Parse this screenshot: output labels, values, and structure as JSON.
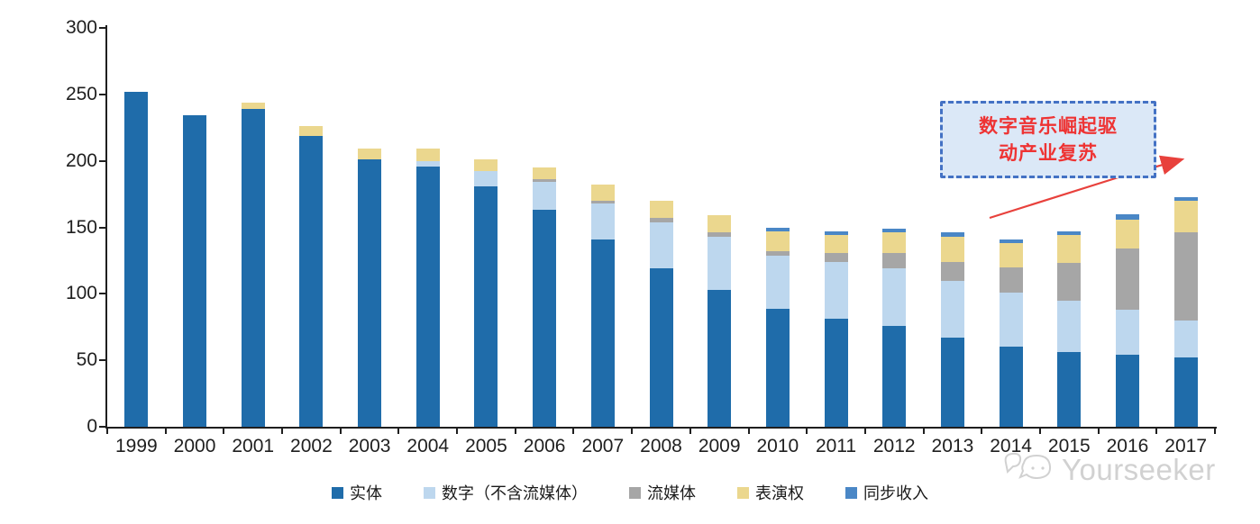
{
  "chart_data": {
    "type": "bar",
    "stacked": true,
    "title": "",
    "xlabel": "",
    "ylabel": "",
    "categories": [
      "1999",
      "2000",
      "2001",
      "2002",
      "2003",
      "2004",
      "2005",
      "2006",
      "2007",
      "2008",
      "2009",
      "2010",
      "2011",
      "2012",
      "2013",
      "2014",
      "2015",
      "2016",
      "2017"
    ],
    "series": [
      {
        "name": "实体",
        "color": "#1f6caa",
        "values": [
          252,
          234,
          239,
          219,
          201,
          196,
          181,
          163,
          141,
          119,
          103,
          89,
          81,
          76,
          67,
          60,
          56,
          54,
          52
        ]
      },
      {
        "name": "数字（不含流媒体）",
        "color": "#bdd7ee",
        "values": [
          0,
          0,
          0,
          0,
          0,
          4,
          11,
          21,
          27,
          35,
          40,
          40,
          43,
          43,
          43,
          41,
          39,
          34,
          28
        ]
      },
      {
        "name": "流媒体",
        "color": "#a6a6a6",
        "values": [
          0,
          0,
          0,
          0,
          0,
          0,
          0,
          2,
          2,
          3,
          3,
          3,
          7,
          12,
          14,
          19,
          28,
          46,
          66
        ]
      },
      {
        "name": "表演权",
        "color": "#ebd78e",
        "values": [
          0,
          0,
          5,
          7,
          8,
          9,
          9,
          9,
          12,
          13,
          13,
          15,
          13,
          15,
          19,
          18,
          21,
          22,
          24
        ]
      },
      {
        "name": "同步收入",
        "color": "#4a87c6",
        "values": [
          0,
          0,
          0,
          0,
          0,
          0,
          0,
          0,
          0,
          0,
          0,
          3,
          3,
          3,
          3,
          3,
          3,
          4,
          3
        ]
      }
    ],
    "ylim": [
      0,
      300
    ],
    "yticks": [
      0,
      50,
      100,
      150,
      200,
      250,
      300
    ],
    "grid": false,
    "legend_position": "bottom",
    "annotation": {
      "text": "数字音乐崛起驱动产业复苏",
      "line1": "数字音乐崛起驱",
      "line2": "动产业复苏"
    }
  },
  "colors": {
    "annotation_fill": "#dbe8f7",
    "annotation_border": "#4472c4",
    "annotation_text": "#ee3333",
    "arrow": "#e8413c",
    "axis": "#1f1f1f"
  },
  "watermark": {
    "text": "Yourseeker"
  }
}
